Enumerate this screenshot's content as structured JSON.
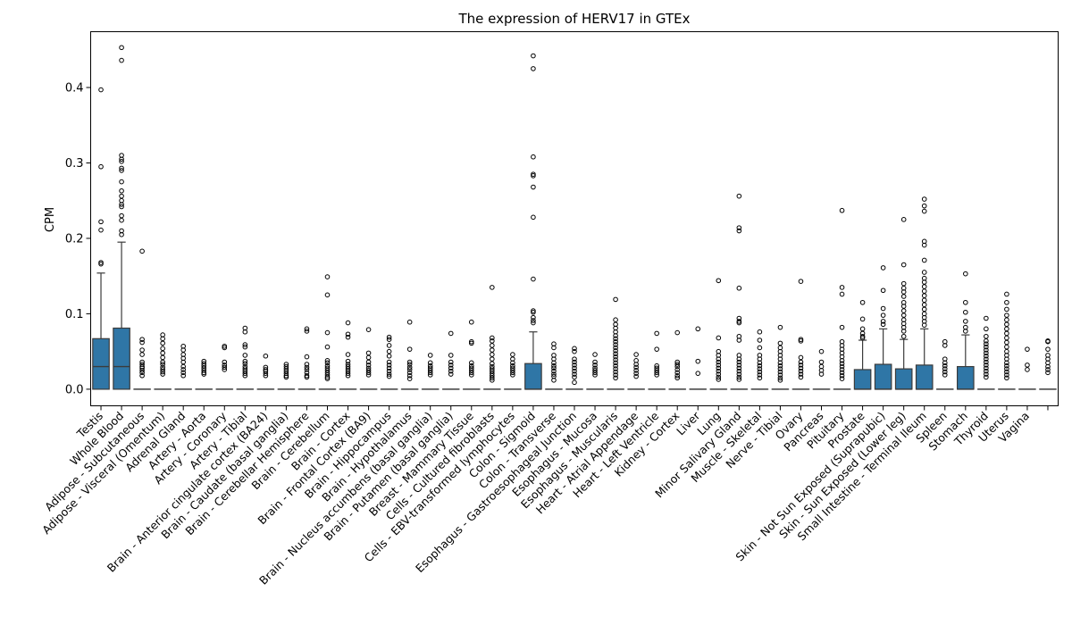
{
  "chart_data": {
    "type": "box",
    "title": "The expression of HERV17 in GTEx",
    "xlabel": "",
    "ylabel": "CPM",
    "ylim": [
      -0.022,
      0.474
    ],
    "yticks": [
      0.0,
      0.1,
      0.2,
      0.3,
      0.4
    ],
    "grid": false,
    "legend": "none",
    "colors": {
      "box_fill": "#2f76a6",
      "line": "#3b3b3b",
      "outlier_edge": "#000000",
      "axis": "#000000"
    },
    "boxes": [
      {
        "label": "Testis",
        "q1": 0,
        "median": 0.03,
        "q3": 0.067,
        "whisker_low": 0,
        "whisker_high": 0.154,
        "outliers": [
          0.397,
          0.295,
          0.222,
          0.211,
          0.168,
          0.166
        ]
      },
      {
        "label": "Whole Blood",
        "q1": 0,
        "median": 0.03,
        "q3": 0.081,
        "whisker_low": 0,
        "whisker_high": 0.195,
        "outliers": [
          0.453,
          0.436,
          0.31,
          0.305,
          0.302,
          0.293,
          0.29,
          0.275,
          0.263,
          0.256,
          0.25,
          0.245,
          0.242,
          0.23,
          0.224,
          0.21,
          0.205
        ]
      },
      {
        "label": "Adipose - Subcutaneous",
        "q1": 0,
        "median": 0,
        "q3": 0,
        "whisker_low": 0,
        "whisker_high": 0,
        "outliers": [
          0.183,
          0.066,
          0.062,
          0.052,
          0.046,
          0.036,
          0.033,
          0.03,
          0.028,
          0.025,
          0.022,
          0.018
        ]
      },
      {
        "label": "Adipose - Visceral (Omentum)",
        "q1": 0,
        "median": 0,
        "q3": 0,
        "whisker_low": 0,
        "whisker_high": 0,
        "outliers": [
          0.072,
          0.067,
          0.061,
          0.054,
          0.048,
          0.042,
          0.036,
          0.033,
          0.029,
          0.026,
          0.023,
          0.02
        ]
      },
      {
        "label": "Adrenal Gland",
        "q1": 0,
        "median": 0,
        "q3": 0,
        "whisker_low": 0,
        "whisker_high": 0,
        "outliers": [
          0.057,
          0.052,
          0.046,
          0.041,
          0.036,
          0.03,
          0.026,
          0.022,
          0.018
        ]
      },
      {
        "label": "Artery - Aorta",
        "q1": 0,
        "median": 0,
        "q3": 0,
        "whisker_low": 0,
        "whisker_high": 0,
        "outliers": [
          0.037,
          0.034,
          0.031,
          0.028,
          0.025,
          0.022,
          0.02
        ]
      },
      {
        "label": "Artery - Coronary",
        "q1": 0,
        "median": 0,
        "q3": 0,
        "whisker_low": 0,
        "whisker_high": 0,
        "outliers": [
          0.057,
          0.055,
          0.036,
          0.032,
          0.029,
          0.026
        ]
      },
      {
        "label": "Artery - Tibial",
        "q1": 0,
        "median": 0,
        "q3": 0,
        "whisker_low": 0,
        "whisker_high": 0,
        "outliers": [
          0.081,
          0.076,
          0.059,
          0.056,
          0.045,
          0.037,
          0.034,
          0.03,
          0.027,
          0.024,
          0.021,
          0.018
        ]
      },
      {
        "label": "Brain - Anterior cingulate cortex (BA24)",
        "q1": 0,
        "median": 0,
        "q3": 0,
        "whisker_low": 0,
        "whisker_high": 0,
        "outliers": [
          0.044,
          0.029,
          0.026,
          0.024,
          0.021,
          0.018
        ]
      },
      {
        "label": "Brain - Caudate (basal ganglia)",
        "q1": 0,
        "median": 0,
        "q3": 0,
        "whisker_low": 0,
        "whisker_high": 0,
        "outliers": [
          0.033,
          0.03,
          0.027,
          0.024,
          0.021,
          0.018,
          0.016
        ]
      },
      {
        "label": "Brain - Cerebellar Hemisphere",
        "q1": 0,
        "median": 0,
        "q3": 0,
        "whisker_low": 0,
        "whisker_high": 0,
        "outliers": [
          0.08,
          0.077,
          0.043,
          0.033,
          0.029,
          0.026,
          0.022,
          0.018,
          0.016
        ]
      },
      {
        "label": "Brain - Cerebellum",
        "q1": 0,
        "median": 0,
        "q3": 0,
        "whisker_low": 0,
        "whisker_high": 0,
        "outliers": [
          0.149,
          0.125,
          0.075,
          0.056,
          0.038,
          0.035,
          0.031,
          0.028,
          0.025,
          0.022,
          0.019,
          0.016,
          0.014
        ]
      },
      {
        "label": "Brain - Cortex",
        "q1": 0,
        "median": 0,
        "q3": 0,
        "whisker_low": 0,
        "whisker_high": 0,
        "outliers": [
          0.088,
          0.073,
          0.069,
          0.046,
          0.037,
          0.033,
          0.03,
          0.027,
          0.024,
          0.021,
          0.018
        ]
      },
      {
        "label": "Brain - Frontal Cortex (BA9)",
        "q1": 0,
        "median": 0,
        "q3": 0,
        "whisker_low": 0,
        "whisker_high": 0,
        "outliers": [
          0.079,
          0.048,
          0.042,
          0.036,
          0.032,
          0.028,
          0.025,
          0.022,
          0.019
        ]
      },
      {
        "label": "Brain - Hippocampus",
        "q1": 0,
        "median": 0,
        "q3": 0,
        "whisker_low": 0,
        "whisker_high": 0,
        "outliers": [
          0.069,
          0.066,
          0.058,
          0.05,
          0.044,
          0.036,
          0.032,
          0.028,
          0.024,
          0.02,
          0.017
        ]
      },
      {
        "label": "Brain - Hypothalamus",
        "q1": 0,
        "median": 0,
        "q3": 0,
        "whisker_low": 0,
        "whisker_high": 0,
        "outliers": [
          0.089,
          0.053,
          0.036,
          0.033,
          0.029,
          0.026,
          0.022,
          0.018,
          0.014
        ]
      },
      {
        "label": "Brain - Nucleus accumbens (basal ganglia)",
        "q1": 0,
        "median": 0,
        "q3": 0,
        "whisker_low": 0,
        "whisker_high": 0,
        "outliers": [
          0.045,
          0.035,
          0.031,
          0.028,
          0.025,
          0.022,
          0.019
        ]
      },
      {
        "label": "Brain - Putamen (basal ganglia)",
        "q1": 0,
        "median": 0,
        "q3": 0,
        "whisker_low": 0,
        "whisker_high": 0,
        "outliers": [
          0.074,
          0.045,
          0.036,
          0.032,
          0.028,
          0.024,
          0.02
        ]
      },
      {
        "label": "Breast - Mammary Tissue",
        "q1": 0,
        "median": 0,
        "q3": 0,
        "whisker_low": 0,
        "whisker_high": 0,
        "outliers": [
          0.089,
          0.063,
          0.061,
          0.035,
          0.031,
          0.028,
          0.025,
          0.022,
          0.019
        ]
      },
      {
        "label": "Cells - Cultured fibroblasts",
        "q1": 0,
        "median": 0,
        "q3": 0,
        "whisker_low": 0,
        "whisker_high": 0,
        "outliers": [
          0.135,
          0.068,
          0.064,
          0.058,
          0.052,
          0.046,
          0.04,
          0.034,
          0.03,
          0.027,
          0.024,
          0.021,
          0.018,
          0.015,
          0.012
        ]
      },
      {
        "label": "Cells - EBV-transformed lymphocytes",
        "q1": 0,
        "median": 0,
        "q3": 0,
        "whisker_low": 0,
        "whisker_high": 0,
        "outliers": [
          0.046,
          0.04,
          0.035,
          0.031,
          0.028,
          0.025,
          0.022,
          0.019
        ]
      },
      {
        "label": "Colon - Sigmoid",
        "q1": 0,
        "median": 0,
        "q3": 0.034,
        "whisker_low": 0,
        "whisker_high": 0.076,
        "outliers": [
          0.442,
          0.425,
          0.308,
          0.285,
          0.283,
          0.268,
          0.228,
          0.146,
          0.104,
          0.102,
          0.095,
          0.091,
          0.088
        ]
      },
      {
        "label": "Colon - Transverse",
        "q1": 0,
        "median": 0,
        "q3": 0,
        "whisker_low": 0,
        "whisker_high": 0,
        "outliers": [
          0.06,
          0.055,
          0.045,
          0.04,
          0.035,
          0.031,
          0.028,
          0.024,
          0.02,
          0.017,
          0.012
        ]
      },
      {
        "label": "Esophagus - Gastroesophageal Junction",
        "q1": 0,
        "median": 0,
        "q3": 0,
        "whisker_low": 0,
        "whisker_high": 0,
        "outliers": [
          0.054,
          0.05,
          0.04,
          0.036,
          0.032,
          0.028,
          0.024,
          0.02,
          0.016,
          0.009
        ]
      },
      {
        "label": "Esophagus - Mucosa",
        "q1": 0,
        "median": 0,
        "q3": 0,
        "whisker_low": 0,
        "whisker_high": 0,
        "outliers": [
          0.046,
          0.036,
          0.032,
          0.028,
          0.025,
          0.022,
          0.019
        ]
      },
      {
        "label": "Esophagus - Muscularis",
        "q1": 0,
        "median": 0,
        "q3": 0,
        "whisker_low": 0,
        "whisker_high": 0,
        "outliers": [
          0.119,
          0.092,
          0.086,
          0.081,
          0.076,
          0.071,
          0.067,
          0.063,
          0.059,
          0.055,
          0.051,
          0.047,
          0.043,
          0.039,
          0.035,
          0.031,
          0.027,
          0.023,
          0.019,
          0.015
        ]
      },
      {
        "label": "Heart - Atrial Appendage",
        "q1": 0,
        "median": 0,
        "q3": 0,
        "whisker_low": 0,
        "whisker_high": 0,
        "outliers": [
          0.046,
          0.038,
          0.033,
          0.029,
          0.025,
          0.021,
          0.017
        ]
      },
      {
        "label": "Heart - Left Ventricle",
        "q1": 0,
        "median": 0,
        "q3": 0,
        "whisker_low": 0,
        "whisker_high": 0,
        "outliers": [
          0.074,
          0.053,
          0.031,
          0.028,
          0.025,
          0.022,
          0.019
        ]
      },
      {
        "label": "Kidney - Cortex",
        "q1": 0,
        "median": 0,
        "q3": 0,
        "whisker_low": 0,
        "whisker_high": 0,
        "outliers": [
          0.075,
          0.036,
          0.033,
          0.03,
          0.026,
          0.022,
          0.018,
          0.015
        ]
      },
      {
        "label": "Liver",
        "q1": 0,
        "median": 0,
        "q3": 0,
        "whisker_low": 0,
        "whisker_high": 0,
        "outliers": [
          0.08,
          0.037,
          0.021
        ]
      },
      {
        "label": "Lung",
        "q1": 0,
        "median": 0,
        "q3": 0,
        "whisker_low": 0,
        "whisker_high": 0,
        "outliers": [
          0.144,
          0.068,
          0.05,
          0.045,
          0.04,
          0.036,
          0.032,
          0.028,
          0.024,
          0.02,
          0.016,
          0.013
        ]
      },
      {
        "label": "Minor Salivary Gland",
        "q1": 0,
        "median": 0,
        "q3": 0,
        "whisker_low": 0,
        "whisker_high": 0,
        "outliers": [
          0.256,
          0.214,
          0.21,
          0.134,
          0.094,
          0.09,
          0.088,
          0.07,
          0.065,
          0.045,
          0.04,
          0.036,
          0.032,
          0.028,
          0.024,
          0.02,
          0.016,
          0.013
        ]
      },
      {
        "label": "Muscle - Skeletal",
        "q1": 0,
        "median": 0,
        "q3": 0,
        "whisker_low": 0,
        "whisker_high": 0,
        "outliers": [
          0.076,
          0.065,
          0.055,
          0.045,
          0.04,
          0.035,
          0.031,
          0.027,
          0.023,
          0.019,
          0.015
        ]
      },
      {
        "label": "Nerve - Tibial",
        "q1": 0,
        "median": 0,
        "q3": 0,
        "whisker_low": 0,
        "whisker_high": 0,
        "outliers": [
          0.082,
          0.061,
          0.055,
          0.05,
          0.045,
          0.04,
          0.035,
          0.031,
          0.027,
          0.023,
          0.019,
          0.015,
          0.012
        ]
      },
      {
        "label": "Ovary",
        "q1": 0,
        "median": 0,
        "q3": 0,
        "whisker_low": 0,
        "whisker_high": 0,
        "outliers": [
          0.143,
          0.066,
          0.064,
          0.042,
          0.036,
          0.032,
          0.028,
          0.024,
          0.02,
          0.016
        ]
      },
      {
        "label": "Pancreas",
        "q1": 0,
        "median": 0,
        "q3": 0,
        "whisker_low": 0,
        "whisker_high": 0,
        "outliers": [
          0.05,
          0.036,
          0.03,
          0.025,
          0.02
        ]
      },
      {
        "label": "Pituitary",
        "q1": 0,
        "median": 0,
        "q3": 0,
        "whisker_low": 0,
        "whisker_high": 0,
        "outliers": [
          0.237,
          0.135,
          0.126,
          0.082,
          0.063,
          0.058,
          0.053,
          0.048,
          0.043,
          0.038,
          0.034,
          0.03,
          0.026,
          0.022,
          0.018,
          0.014
        ]
      },
      {
        "label": "Prostate",
        "q1": 0,
        "median": 0,
        "q3": 0.026,
        "whisker_low": 0,
        "whisker_high": 0.065,
        "outliers": [
          0.115,
          0.093,
          0.08,
          0.074,
          0.07,
          0.068
        ]
      },
      {
        "label": "Skin - Not Sun Exposed (Suprapubic)",
        "q1": 0,
        "median": 0,
        "q3": 0.033,
        "whisker_low": 0,
        "whisker_high": 0.08,
        "outliers": [
          0.161,
          0.131,
          0.107,
          0.098,
          0.09,
          0.086
        ]
      },
      {
        "label": "Skin - Sun Exposed (Lower leg)",
        "q1": 0,
        "median": 0,
        "q3": 0.027,
        "whisker_low": 0,
        "whisker_high": 0.066,
        "outliers": [
          0.225,
          0.165,
          0.14,
          0.134,
          0.129,
          0.123,
          0.115,
          0.11,
          0.104,
          0.098,
          0.092,
          0.087,
          0.082,
          0.077,
          0.07
        ]
      },
      {
        "label": "Small Intestine - Terminal Ileum",
        "q1": 0,
        "median": 0,
        "q3": 0.032,
        "whisker_low": 0,
        "whisker_high": 0.08,
        "outliers": [
          0.252,
          0.243,
          0.236,
          0.196,
          0.191,
          0.171,
          0.155,
          0.147,
          0.142,
          0.136,
          0.13,
          0.124,
          0.118,
          0.112,
          0.106,
          0.1,
          0.095,
          0.09,
          0.085
        ]
      },
      {
        "label": "Spleen",
        "q1": 0,
        "median": 0,
        "q3": 0,
        "whisker_low": 0,
        "whisker_high": 0,
        "outliers": [
          0.063,
          0.058,
          0.04,
          0.035,
          0.031,
          0.027,
          0.023,
          0.019
        ]
      },
      {
        "label": "Stomach",
        "q1": 0,
        "median": 0,
        "q3": 0.03,
        "whisker_low": 0,
        "whisker_high": 0.072,
        "outliers": [
          0.153,
          0.115,
          0.102,
          0.09,
          0.082,
          0.077
        ]
      },
      {
        "label": "Thyroid",
        "q1": 0,
        "median": 0,
        "q3": 0,
        "whisker_low": 0,
        "whisker_high": 0,
        "outliers": [
          0.094,
          0.08,
          0.07,
          0.064,
          0.06,
          0.056,
          0.052,
          0.048,
          0.044,
          0.04,
          0.036,
          0.032,
          0.028,
          0.024,
          0.02,
          0.016
        ]
      },
      {
        "label": "Uterus",
        "q1": 0,
        "median": 0,
        "q3": 0,
        "whisker_low": 0,
        "whisker_high": 0,
        "outliers": [
          0.126,
          0.115,
          0.106,
          0.098,
          0.092,
          0.086,
          0.08,
          0.074,
          0.068,
          0.062,
          0.056,
          0.05,
          0.045,
          0.04,
          0.035,
          0.031,
          0.027,
          0.023,
          0.019,
          0.015
        ]
      },
      {
        "label": "Vagina",
        "q1": 0,
        "median": 0,
        "q3": 0,
        "whisker_low": 0,
        "whisker_high": 0,
        "outliers": [
          0.053,
          0.032,
          0.026
        ]
      },
      {
        "label": "",
        "q1": 0,
        "median": 0,
        "q3": 0,
        "whisker_low": 0,
        "whisker_high": 0,
        "outliers": [
          0.064,
          0.063,
          0.053,
          0.045,
          0.04,
          0.035,
          0.03,
          0.026,
          0.022
        ]
      }
    ]
  }
}
